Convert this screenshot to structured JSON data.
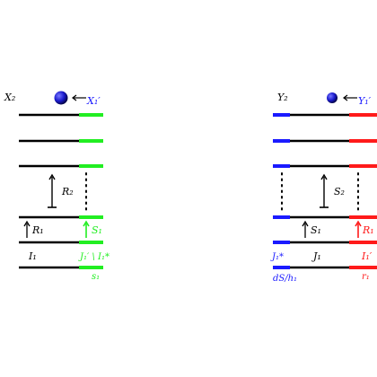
{
  "colors": {
    "black": "#000000",
    "green": "#22ee22",
    "red": "#ff1a1a",
    "blue": "#1a1aff",
    "ball_dark": "#0a0a80",
    "ball_light": "#5555ff"
  },
  "left": {
    "label_x2": "X₂",
    "label_x1p": "X₁′",
    "label_r2": "R₂",
    "label_r1": "R₁",
    "label_s1_arrow": "S₁",
    "label_i1": "I₁",
    "label_j1_minus": "J₁′ \\ I₁*",
    "label_s1_bottom": "s₁"
  },
  "right": {
    "label_y2": "Y₂",
    "label_y1p": "Y₁′",
    "label_s2": "S₂",
    "label_s1": "S₁",
    "label_r1": "R₁",
    "label_j1_star": "J₁*",
    "label_j1": "J₁",
    "label_i1p": "I₁′",
    "label_ds_h1": "dS/h₁",
    "label_r1_bottom": "r₁"
  }
}
